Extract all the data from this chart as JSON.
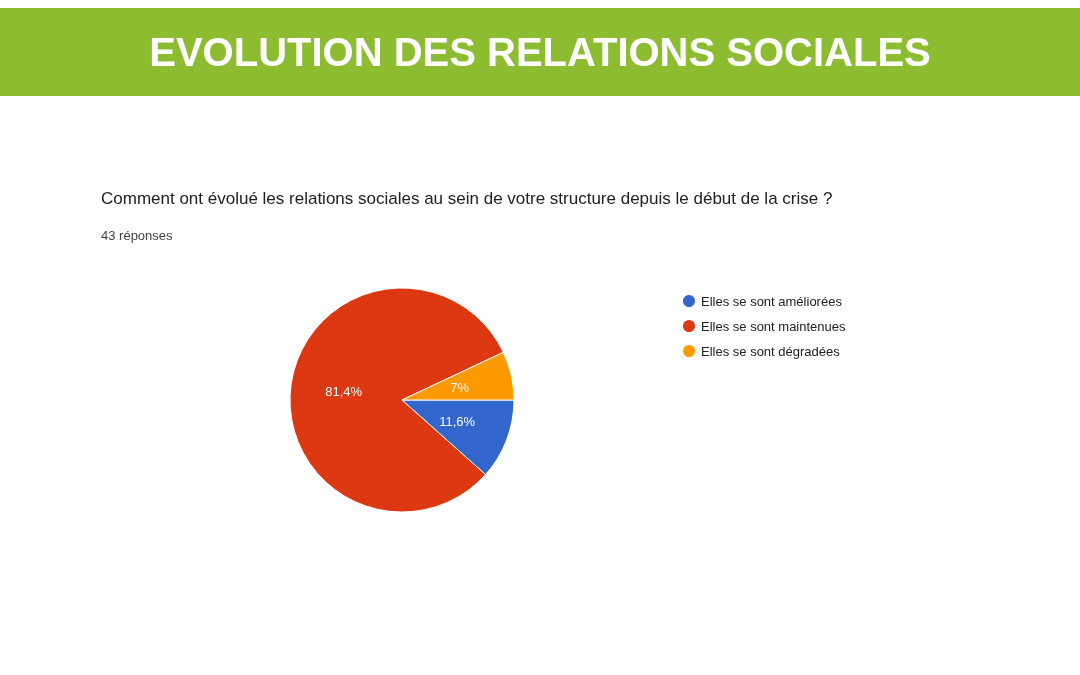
{
  "chart_data": {
    "type": "pie",
    "title": "EVOLUTION DES RELATIONS SOCIALES",
    "subtitle": "Comment ont évolué les relations sociales au sein de votre structure depuis le début de la crise ?",
    "annotations": [
      "43 réponses"
    ],
    "categories": [
      "Elles se sont améliorées",
      "Elles se sont maintenues",
      "Elles se sont dégradées"
    ],
    "values": [
      11.6,
      81.4,
      7
    ],
    "value_labels": [
      "11,6%",
      "81,4%",
      "7%"
    ],
    "colors": [
      "#3366cc",
      "#dc3912",
      "#ff9900"
    ],
    "legend": "right"
  }
}
